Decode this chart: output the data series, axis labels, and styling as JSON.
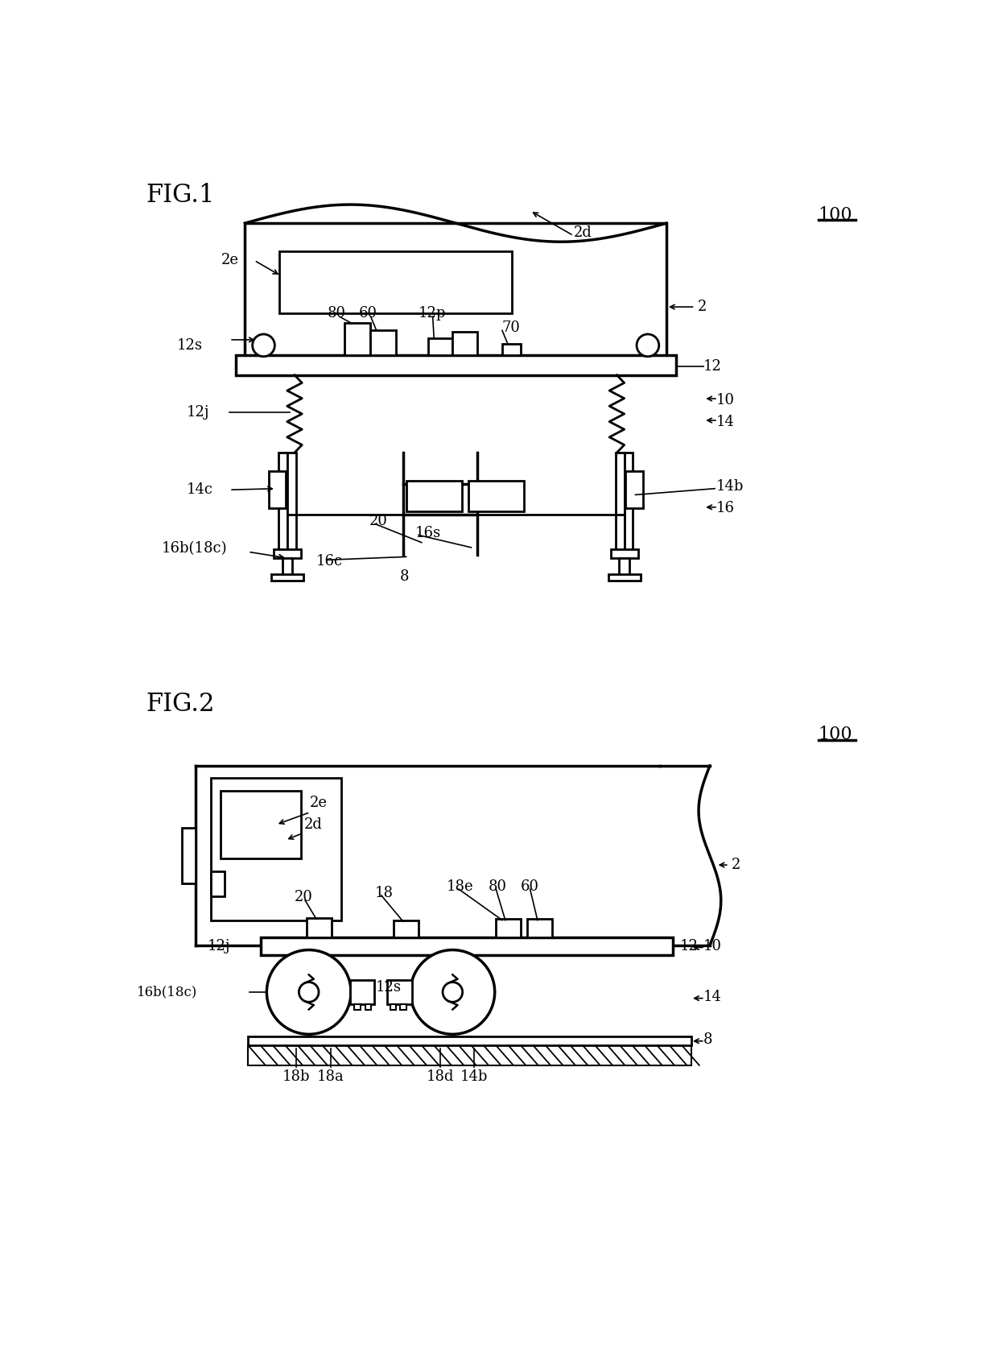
{
  "fig1_title": "FIG.1",
  "fig2_title": "FIG.2",
  "label_100": "100",
  "bg_color": "#ffffff",
  "line_color": "#000000"
}
